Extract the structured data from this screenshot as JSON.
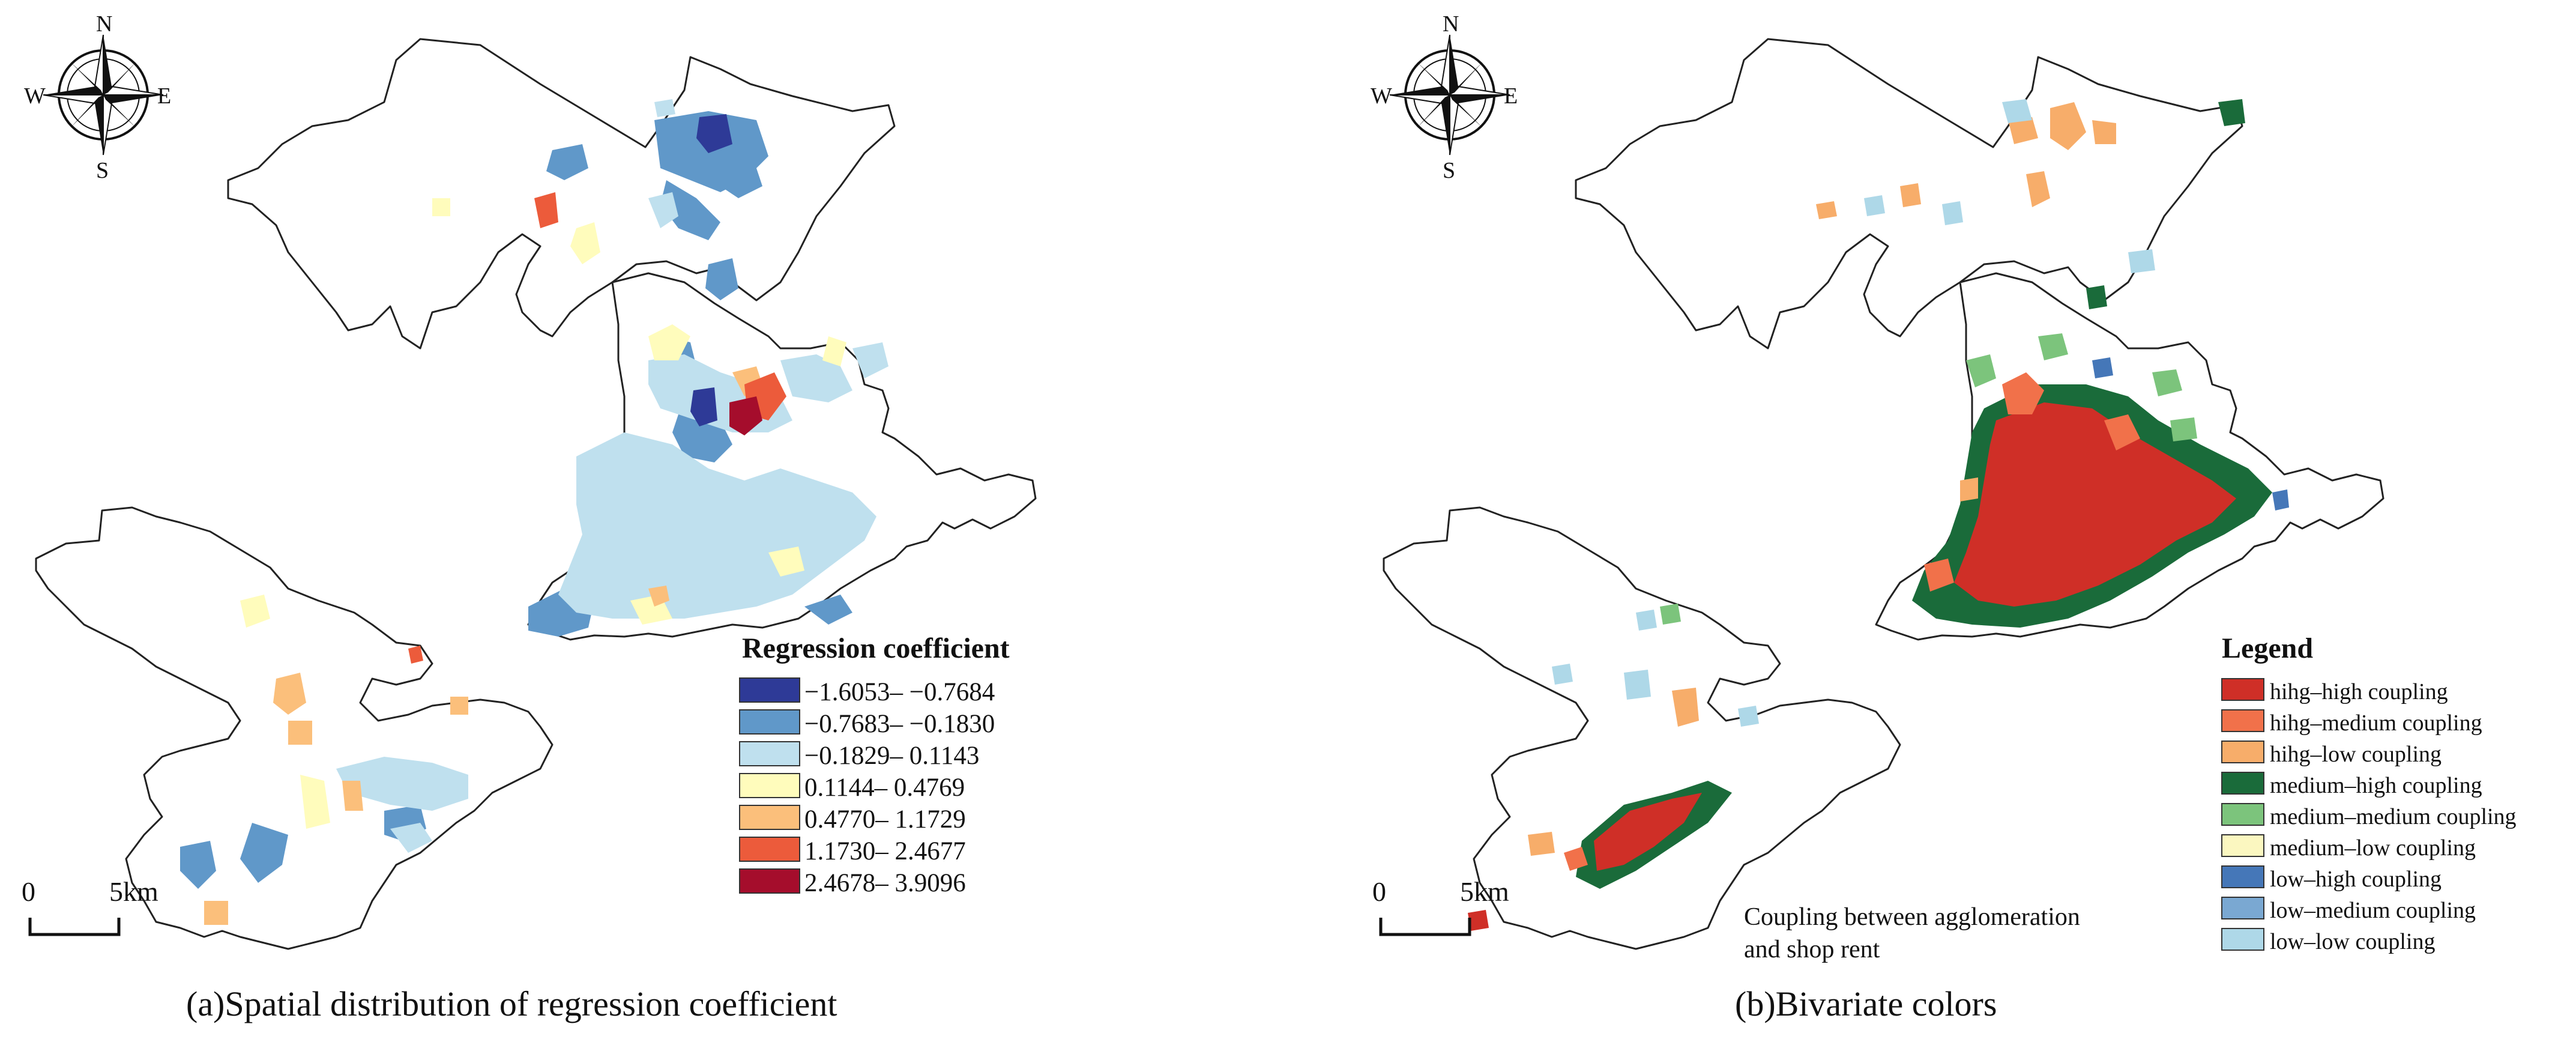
{
  "compass": {
    "north": "N",
    "south": "S",
    "east": "E",
    "west": "W"
  },
  "scale_bar": {
    "start": "0",
    "end": "5",
    "unit": "km"
  },
  "panel_a": {
    "caption": "(a)Spatial distribution of regression coefficient",
    "legend_title": "Regression coefficient",
    "legend_items": [
      {
        "label": "−1.6053– −0.7684",
        "color": "#2e3a97"
      },
      {
        "label": "−0.7683– −0.1830",
        "color": "#6098c9"
      },
      {
        "label": "−0.1829– 0.1143",
        "color": "#bfe0ee"
      },
      {
        "label": "0.1144– 0.4769",
        "color": "#fffcbc"
      },
      {
        "label": "0.4770– 1.1729",
        "color": "#fbbf7b"
      },
      {
        "label": "1.1730– 2.4677",
        "color": "#ec5b3b"
      },
      {
        "label": "2.4678– 3.9096",
        "color": "#a50d2c"
      }
    ]
  },
  "panel_b": {
    "caption": "(b)Bivariate colors",
    "legend_title": "Legend",
    "note_line1": "Coupling between agglomeration",
    "note_line2": "and shop rent",
    "legend_items": [
      {
        "label": "hihg–high coupling",
        "color": "#cf2f27"
      },
      {
        "label": "hihg–medium coupling",
        "color": "#f1714a"
      },
      {
        "label": "hihg–low coupling",
        "color": "#f7ad6a"
      },
      {
        "label": "medium–high coupling",
        "color": "#1a6b3a"
      },
      {
        "label": "medium–medium coupling",
        "color": "#7cc47c"
      },
      {
        "label": "medium–low coupling",
        "color": "#fbf7c0"
      },
      {
        "label": "low–high coupling",
        "color": "#4577b8"
      },
      {
        "label": "low–medium coupling",
        "color": "#7aa8d2"
      },
      {
        "label": "low–low coupling",
        "color": "#aed8e8"
      }
    ]
  }
}
